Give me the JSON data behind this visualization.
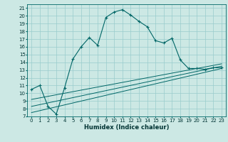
{
  "title": "",
  "xlabel": "Humidex (Indice chaleur)",
  "bg_color": "#cce8e4",
  "grid_color": "#99cccc",
  "line_color": "#006666",
  "xlim": [
    -0.5,
    23.5
  ],
  "ylim": [
    7,
    21.5
  ],
  "xticks": [
    0,
    1,
    2,
    3,
    4,
    5,
    6,
    7,
    8,
    9,
    10,
    11,
    12,
    13,
    14,
    15,
    16,
    17,
    18,
    19,
    20,
    21,
    22,
    23
  ],
  "yticks": [
    7,
    8,
    9,
    10,
    11,
    12,
    13,
    14,
    15,
    16,
    17,
    18,
    19,
    20,
    21
  ],
  "main_x": [
    0,
    1,
    2,
    3,
    4,
    5,
    6,
    7,
    8,
    9,
    10,
    11,
    12,
    13,
    14,
    15,
    16,
    17,
    18,
    19,
    20,
    21,
    22,
    23
  ],
  "main_y": [
    10.5,
    11.0,
    8.3,
    7.3,
    10.7,
    14.4,
    16.0,
    17.2,
    16.2,
    19.8,
    20.5,
    20.8,
    20.1,
    19.3,
    18.6,
    16.8,
    16.5,
    17.1,
    14.3,
    13.2,
    13.2,
    13.1,
    13.3,
    13.3
  ],
  "line1_x": [
    0,
    23
  ],
  "line1_y": [
    7.5,
    13.2
  ],
  "line2_x": [
    0,
    23
  ],
  "line2_y": [
    8.3,
    13.5
  ],
  "line3_x": [
    0,
    23
  ],
  "line3_y": [
    9.2,
    13.8
  ],
  "tick_fontsize": 5.0,
  "xlabel_fontsize": 6.0
}
